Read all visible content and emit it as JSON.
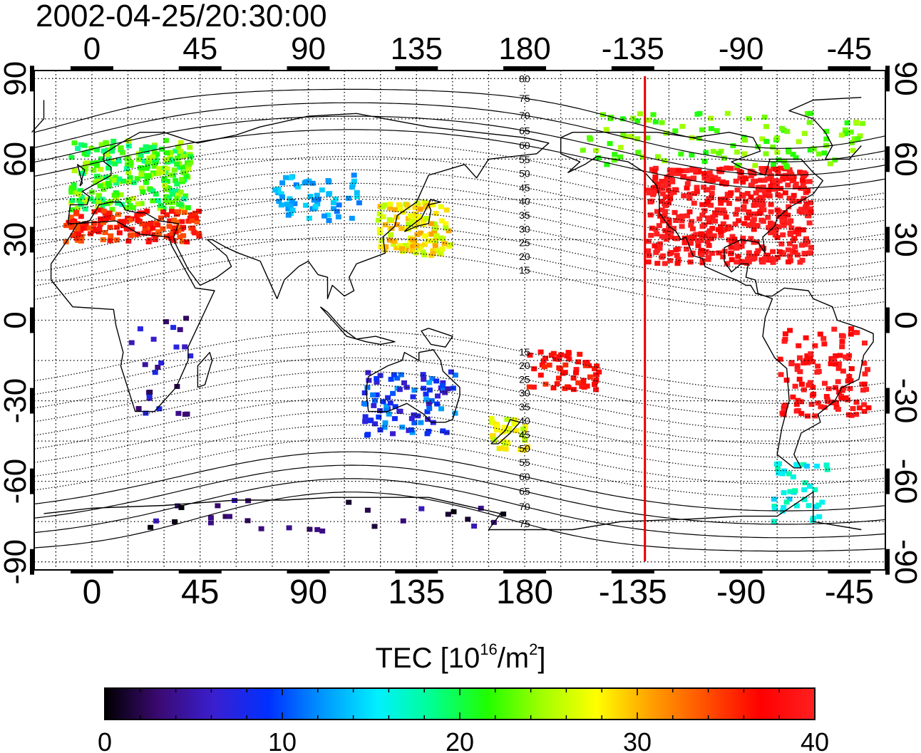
{
  "title": "2002-04-25/20:30:00",
  "map": {
    "lon_ticks": [
      "0",
      "45",
      "90",
      "135",
      "180",
      "-135",
      "-90",
      "-45"
    ],
    "lat_ticks": [
      "90",
      "60",
      "30",
      "0",
      "-30",
      "-60",
      "-90"
    ],
    "lon_range": [
      -24,
      330
    ],
    "lat_range": [
      -93,
      93
    ],
    "terminator_lon": -130,
    "terminator_color": "#e00000",
    "grid": "dotted, 15 degree spacing",
    "contour_labels_north": [
      "80",
      "75",
      "70",
      "65",
      "60",
      "55",
      "50",
      "45",
      "40",
      "35",
      "30",
      "25",
      "20",
      "15"
    ],
    "contour_labels_south": [
      "15",
      "20",
      "25",
      "30",
      "35",
      "40",
      "45",
      "50",
      "55",
      "60",
      "65",
      "70",
      "75"
    ]
  },
  "colorbar": {
    "title_prefix": "TEC  [10",
    "title_exp1": "16",
    "title_mid": "/m",
    "title_exp2": "2",
    "title_suffix": "]",
    "min": 0,
    "max": 40,
    "tick_labels": [
      "0",
      "10",
      "20",
      "30",
      "40"
    ],
    "colormap": [
      "#000000",
      "#3b0a73",
      "#3a1fd0",
      "#0030ff",
      "#0098ff",
      "#00f0ff",
      "#00ff90",
      "#20ff00",
      "#a0ff00",
      "#ffff00",
      "#ffa000",
      "#ff5000",
      "#ff0000",
      "#ff2020"
    ]
  },
  "tec_regions": [
    {
      "name": "europe",
      "tec": 22
    },
    {
      "name": "europe-south",
      "tec": 36
    },
    {
      "name": "north-america",
      "tec": 40
    },
    {
      "name": "japan",
      "tec": 28
    },
    {
      "name": "china",
      "tec": 13
    },
    {
      "name": "south-america",
      "tec": 39
    },
    {
      "name": "southern-africa",
      "tec": 5
    },
    {
      "name": "australia",
      "tec": 9
    },
    {
      "name": "antarctica",
      "tec": 3
    },
    {
      "name": "pacific-south",
      "tec": 37
    },
    {
      "name": "new-zealand",
      "tec": 27
    },
    {
      "name": "alaska-canada-north",
      "tec": 23
    },
    {
      "name": "patagonia",
      "tec": 16
    }
  ]
}
